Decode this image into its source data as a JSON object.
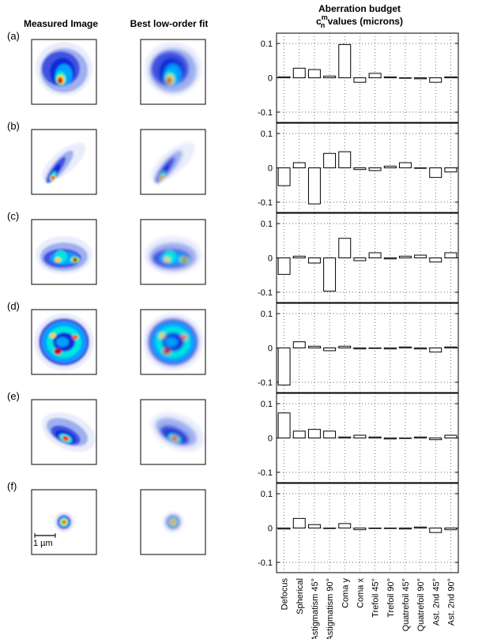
{
  "headers": {
    "measured": "Measured Image",
    "fit": "Best low-order fit",
    "budget_line1": "Aberration budget",
    "budget_c": "c",
    "budget_sup": "m",
    "budget_sub": "n",
    "budget_rest": " values (microns)"
  },
  "panel_labels": [
    "(a)",
    "(b)",
    "(c)",
    "(d)",
    "(e)",
    "(f)"
  ],
  "scale_bar_label": "1 µm",
  "colors": {
    "bar_fill": "#ffffff",
    "bar_stroke": "#000000",
    "grid": "#555555",
    "psf_colormap": [
      "#e9ecfb",
      "#9fb0f0",
      "#3f52e0",
      "#0b2cd8",
      "#00a0ff",
      "#00e6e0",
      "#7dff7a",
      "#ffd600",
      "#ff5a00",
      "#c80000"
    ]
  },
  "chart_data": [
    {
      "type": "bar",
      "panel": "(a)",
      "categories": [
        "Defocus",
        "Spherical",
        "Astigmatism 45°",
        "Astigmatism 90°",
        "Coma y",
        "Coma x",
        "Trefoil 45°",
        "Trefoil 90°",
        "Quatrefoil 45°",
        "Quatrefoil 90°",
        "Ast. 2nd 45°",
        "Ast. 2nd 90°"
      ],
      "values": [
        0.003,
        0.028,
        0.024,
        0.005,
        0.097,
        -0.013,
        0.013,
        0.003,
        0.0,
        -0.003,
        -0.013,
        0.003
      ],
      "ylim": [
        -0.13,
        0.13
      ],
      "yticks": [
        -0.1,
        0,
        0.1
      ],
      "ytick_labels": [
        "-0.1",
        "0",
        "0.1"
      ],
      "grid": true
    },
    {
      "type": "bar",
      "panel": "(b)",
      "categories": [
        "Defocus",
        "Spherical",
        "Astigmatism 45°",
        "Astigmatism 90°",
        "Coma y",
        "Coma x",
        "Trefoil 45°",
        "Trefoil 90°",
        "Quatrefoil 45°",
        "Quatrefoil 90°",
        "Ast. 2nd 45°",
        "Ast. 2nd 90°"
      ],
      "values": [
        -0.052,
        0.015,
        -0.105,
        0.042,
        0.047,
        -0.005,
        -0.008,
        0.005,
        0.015,
        0.0,
        -0.028,
        -0.012
      ],
      "ylim": [
        -0.13,
        0.13
      ],
      "yticks": [
        -0.1,
        0,
        0.1
      ],
      "ytick_labels": [
        "-0.1",
        "0",
        "0.1"
      ],
      "grid": true
    },
    {
      "type": "bar",
      "panel": "(c)",
      "categories": [
        "Defocus",
        "Spherical",
        "Astigmatism 45°",
        "Astigmatism 90°",
        "Coma y",
        "Coma x",
        "Trefoil 45°",
        "Trefoil 90°",
        "Quatrefoil 45°",
        "Quatrefoil 90°",
        "Ast. 2nd 45°",
        "Ast. 2nd 90°"
      ],
      "values": [
        -0.048,
        0.005,
        -0.015,
        -0.097,
        0.057,
        -0.008,
        0.015,
        -0.003,
        0.005,
        0.008,
        -0.012,
        0.015
      ],
      "ylim": [
        -0.13,
        0.13
      ],
      "yticks": [
        -0.1,
        0,
        0.1
      ],
      "ytick_labels": [
        "-0.1",
        "0",
        "0.1"
      ],
      "grid": true
    },
    {
      "type": "bar",
      "panel": "(d)",
      "categories": [
        "Defocus",
        "Spherical",
        "Astigmatism 45°",
        "Astigmatism 90°",
        "Coma y",
        "Coma x",
        "Trefoil 45°",
        "Trefoil 90°",
        "Quatrefoil 45°",
        "Quatrefoil 90°",
        "Ast. 2nd 45°",
        "Ast. 2nd 90°"
      ],
      "values": [
        -0.108,
        0.018,
        0.005,
        -0.008,
        0.005,
        -0.003,
        0.0,
        -0.003,
        0.003,
        -0.003,
        -0.012,
        0.003
      ],
      "ylim": [
        -0.13,
        0.13
      ],
      "yticks": [
        -0.1,
        0,
        0.1
      ],
      "ytick_labels": [
        "-0.1",
        "0",
        "0.1"
      ],
      "grid": true
    },
    {
      "type": "bar",
      "panel": "(e)",
      "categories": [
        "Defocus",
        "Spherical",
        "Astigmatism 45°",
        "Astigmatism 90°",
        "Coma y",
        "Coma x",
        "Trefoil 45°",
        "Trefoil 90°",
        "Quatrefoil 45°",
        "Quatrefoil 90°",
        "Ast. 2nd 45°",
        "Ast. 2nd 90°"
      ],
      "values": [
        0.073,
        0.02,
        0.025,
        0.02,
        0.003,
        0.008,
        0.003,
        -0.003,
        0.0,
        0.003,
        -0.005,
        0.008
      ],
      "ylim": [
        -0.13,
        0.13
      ],
      "yticks": [
        -0.1,
        0,
        0.1
      ],
      "ytick_labels": [
        "-0.1",
        "0",
        "0.1"
      ],
      "grid": true
    },
    {
      "type": "bar",
      "panel": "(f)",
      "categories": [
        "Defocus",
        "Spherical",
        "Astigmatism 45°",
        "Astigmatism 90°",
        "Coma y",
        "Coma x",
        "Trefoil 45°",
        "Trefoil 90°",
        "Quatrefoil 45°",
        "Quatrefoil 90°",
        "Ast. 2nd 45°",
        "Ast. 2nd 90°"
      ],
      "values": [
        -0.003,
        0.028,
        0.01,
        0.0,
        0.013,
        -0.005,
        0.0,
        0.0,
        -0.003,
        0.003,
        -0.013,
        -0.005
      ],
      "ylim": [
        -0.13,
        0.13
      ],
      "yticks": [
        -0.1,
        0,
        0.1
      ],
      "ytick_labels": [
        "-0.1",
        "0",
        "0.1"
      ],
      "grid": true
    }
  ]
}
